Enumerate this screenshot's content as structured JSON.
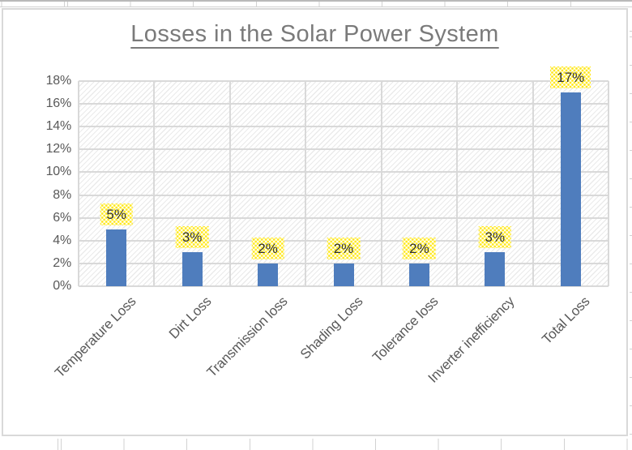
{
  "chart_data": {
    "type": "bar",
    "title": "Losses in the Solar Power System",
    "categories": [
      "Temperature Loss",
      "Dirt Loss",
      "Transmission loss",
      "Shading Loss",
      "Tolerance loss",
      "Inverter inefficiency",
      "Total Loss"
    ],
    "values": [
      5,
      3,
      2,
      2,
      2,
      3,
      17
    ],
    "data_labels": [
      "5%",
      "3%",
      "2%",
      "2%",
      "2%",
      "3%",
      "17%"
    ],
    "y_ticks": [
      "0%",
      "2%",
      "4%",
      "6%",
      "8%",
      "10%",
      "12%",
      "14%",
      "16%",
      "18%"
    ],
    "ylim": [
      0,
      18
    ],
    "xlabel": "",
    "ylabel": "",
    "grid": true,
    "legend": "none",
    "bar_color": "#4f7dbd",
    "plot_fill_pattern": "light-diagonal-hatch",
    "data_label_fill_pattern": "yellow-dot-pattern",
    "category_label_rotation_deg": 45
  },
  "colors": {
    "bar_blue": "#4f7dbd",
    "gridline": "#d9d9d9",
    "chart_border": "#d9d9d9",
    "axis_text": "#595959",
    "title_text": "#7a7a7a",
    "data_label_text": "#2f2f2f",
    "label_dot_yellow": "#ffe81a",
    "cell_line": "#d2d2d2"
  }
}
